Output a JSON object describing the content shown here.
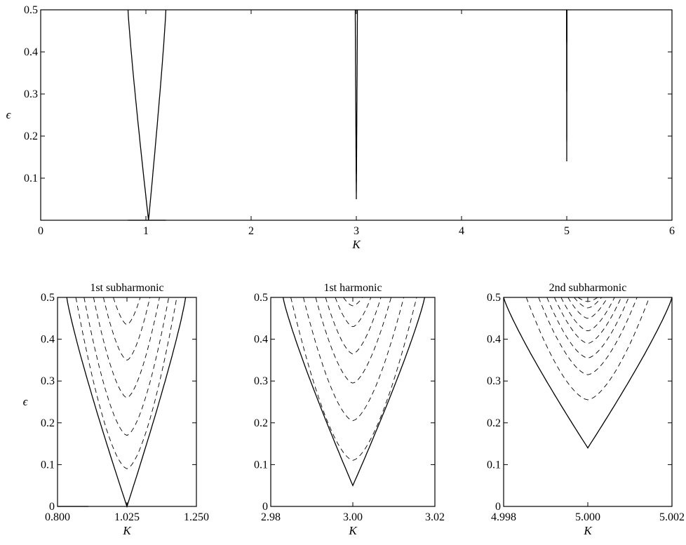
{
  "chart_data": [
    {
      "type": "line",
      "title": "",
      "xlabel": "K",
      "ylabel": "ϵ",
      "xlim": [
        0,
        6
      ],
      "ylim": [
        0,
        0.5
      ],
      "xticks": [
        "0",
        "1",
        "2",
        "3",
        "4",
        "5",
        "6"
      ],
      "yticks": [
        "0.1",
        "0.2",
        "0.3",
        "0.4",
        "0.5"
      ],
      "grid": false,
      "tongues": [
        {
          "tip": [
            1.025,
            0.0
          ],
          "top": [
            [
              0.83,
              0.5
            ],
            [
              1.19,
              0.5
            ]
          ]
        },
        {
          "tip": [
            3.0,
            0.05
          ],
          "top": [
            [
              2.99,
              0.5
            ],
            [
              3.01,
              0.5
            ]
          ]
        },
        {
          "tip": [
            5.0,
            0.14
          ],
          "top": [
            [
              4.998,
              0.5
            ],
            [
              5.002,
              0.5
            ]
          ]
        }
      ]
    },
    {
      "type": "line",
      "title": "1st subharmonic",
      "xlabel": "K",
      "ylabel": "ϵ",
      "xlim": [
        0.8,
        1.25
      ],
      "ylim": [
        0,
        0.5
      ],
      "xticks": [
        "0.800",
        "1.025",
        "1.250"
      ],
      "yticks": [
        "0",
        "0.1",
        "0.2",
        "0.3",
        "0.4",
        "0.5"
      ],
      "grid": false,
      "boundary": {
        "tip": [
          1.025,
          0.0
        ],
        "top_left": [
          0.83,
          0.5
        ],
        "top_right": [
          1.215,
          0.5
        ]
      },
      "dashed_contours_min_eps": [
        0.09,
        0.17,
        0.26,
        0.35,
        0.435
      ]
    },
    {
      "type": "line",
      "title": "1st harmonic",
      "xlabel": "K",
      "ylabel": "",
      "xlim": [
        2.98,
        3.02
      ],
      "ylim": [
        0,
        0.5
      ],
      "xticks": [
        "2.98",
        "3.00",
        "3.02"
      ],
      "yticks": [
        "0",
        "0.1",
        "0.2",
        "0.3",
        "0.4",
        "0.5"
      ],
      "grid": false,
      "boundary": {
        "tip": [
          3.0,
          0.05
        ],
        "top_left": [
          2.983,
          0.5
        ],
        "top_right": [
          3.0175,
          0.5
        ]
      },
      "dashed_contours_min_eps": [
        0.11,
        0.205,
        0.295,
        0.365,
        0.43,
        0.48
      ]
    },
    {
      "type": "line",
      "title": "2nd subharmonic",
      "xlabel": "K",
      "ylabel": "",
      "xlim": [
        4.998,
        5.002
      ],
      "ylim": [
        0,
        0.5
      ],
      "xticks": [
        "4.998",
        "5.000",
        "5.002"
      ],
      "yticks": [
        "0",
        "0.1",
        "0.2",
        "0.3",
        "0.4",
        "0.5"
      ],
      "grid": false,
      "boundary": {
        "tip": [
          5.0,
          0.14
        ],
        "top_left": [
          4.998,
          0.5
        ],
        "top_right": [
          5.002,
          0.5
        ]
      },
      "dashed_contours_min_eps": [
        0.255,
        0.315,
        0.355,
        0.39,
        0.42,
        0.45,
        0.475,
        0.49
      ]
    }
  ]
}
